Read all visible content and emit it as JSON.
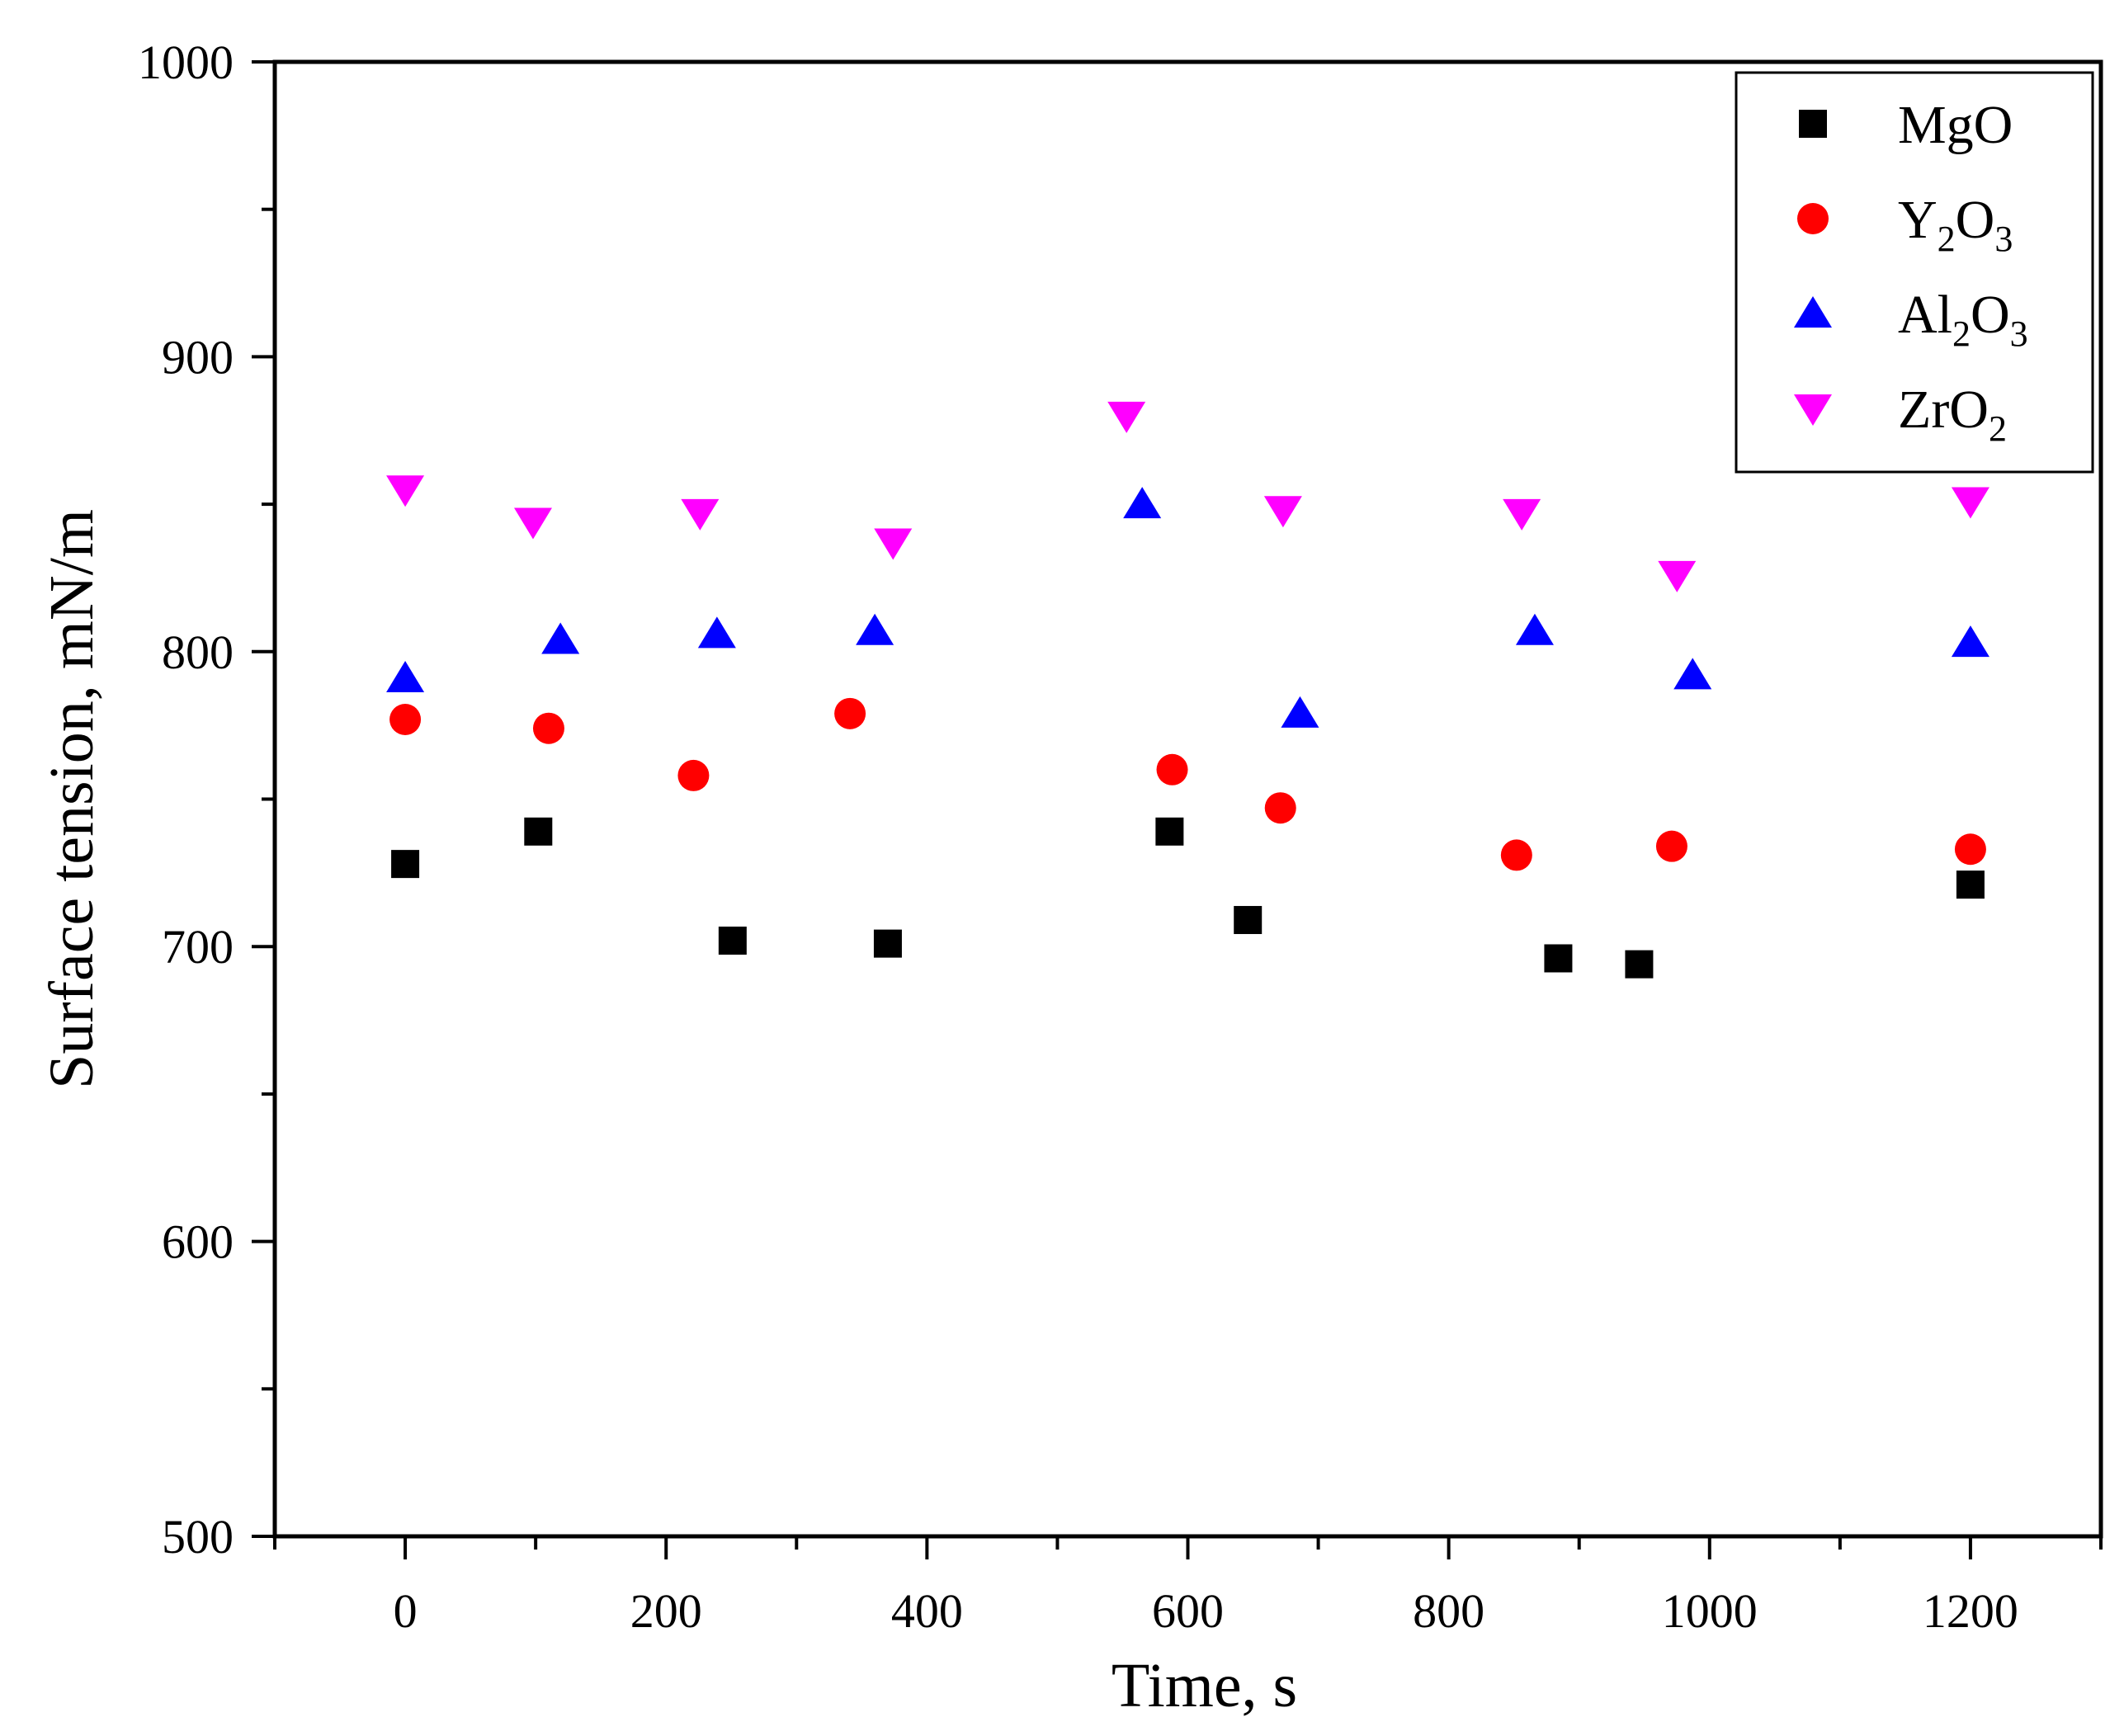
{
  "chart_data": {
    "type": "scatter",
    "title": "",
    "xlabel": "Time, s",
    "ylabel": "Surface tension, mN/m",
    "xlim": [
      -100,
      1300
    ],
    "ylim": [
      500,
      1000
    ],
    "x_major_ticks": [
      0,
      200,
      400,
      600,
      800,
      1000,
      1200
    ],
    "x_tick_labels": [
      "0",
      "200",
      "400",
      "600",
      "800",
      "1000",
      "1200"
    ],
    "x_minor_ticks": [
      -100,
      100,
      300,
      500,
      700,
      900,
      1100,
      1300
    ],
    "y_major_ticks": [
      500,
      600,
      700,
      800,
      900,
      1000
    ],
    "y_tick_labels": [
      "500",
      "600",
      "700",
      "800",
      "900",
      "1000"
    ],
    "y_minor_ticks": [
      550,
      650,
      750,
      850,
      950
    ],
    "grid": false,
    "legend_position": "top-right",
    "series": [
      {
        "name": "MgO",
        "label_main": "MgO",
        "label_parts": [
          {
            "text": "MgO",
            "sub": false
          }
        ],
        "marker": "square",
        "color": "#000000",
        "points": [
          {
            "x": 0,
            "y": 728
          },
          {
            "x": 102,
            "y": 739
          },
          {
            "x": 251,
            "y": 702
          },
          {
            "x": 370,
            "y": 701
          },
          {
            "x": 586,
            "y": 739
          },
          {
            "x": 646,
            "y": 709
          },
          {
            "x": 884,
            "y": 696
          },
          {
            "x": 946,
            "y": 694
          },
          {
            "x": 1200,
            "y": 721
          }
        ]
      },
      {
        "name": "Y2O3",
        "label_main": "Y",
        "label_parts": [
          {
            "text": "Y",
            "sub": false
          },
          {
            "text": "2",
            "sub": true
          },
          {
            "text": "O",
            "sub": false
          },
          {
            "text": "3",
            "sub": true
          }
        ],
        "marker": "circle",
        "color": "#ff0000",
        "points": [
          {
            "x": 0,
            "y": 777
          },
          {
            "x": 110,
            "y": 774
          },
          {
            "x": 221,
            "y": 758
          },
          {
            "x": 341,
            "y": 779
          },
          {
            "x": 588,
            "y": 760
          },
          {
            "x": 671,
            "y": 747
          },
          {
            "x": 852,
            "y": 731
          },
          {
            "x": 971,
            "y": 734
          },
          {
            "x": 1200,
            "y": 733
          }
        ]
      },
      {
        "name": "Al2O3",
        "label_main": "Al",
        "label_parts": [
          {
            "text": "Al",
            "sub": false
          },
          {
            "text": "2",
            "sub": true
          },
          {
            "text": "O",
            "sub": false
          },
          {
            "text": "3",
            "sub": true
          }
        ],
        "marker": "triangle-up",
        "color": "#0000ff",
        "points": [
          {
            "x": 0,
            "y": 791
          },
          {
            "x": 119,
            "y": 804
          },
          {
            "x": 239,
            "y": 806
          },
          {
            "x": 360,
            "y": 807
          },
          {
            "x": 565,
            "y": 850
          },
          {
            "x": 686,
            "y": 779
          },
          {
            "x": 866,
            "y": 807
          },
          {
            "x": 987,
            "y": 792
          },
          {
            "x": 1200,
            "y": 803
          }
        ]
      },
      {
        "name": "ZrO2",
        "label_main": "ZrO",
        "label_parts": [
          {
            "text": "ZrO",
            "sub": false
          },
          {
            "text": "2",
            "sub": true
          }
        ],
        "marker": "triangle-down",
        "color": "#ff00ff",
        "points": [
          {
            "x": 0,
            "y": 855
          },
          {
            "x": 98,
            "y": 844
          },
          {
            "x": 226,
            "y": 847
          },
          {
            "x": 374,
            "y": 837
          },
          {
            "x": 553,
            "y": 880
          },
          {
            "x": 673,
            "y": 848
          },
          {
            "x": 856,
            "y": 847
          },
          {
            "x": 975,
            "y": 826
          },
          {
            "x": 1200,
            "y": 851
          }
        ]
      }
    ]
  }
}
